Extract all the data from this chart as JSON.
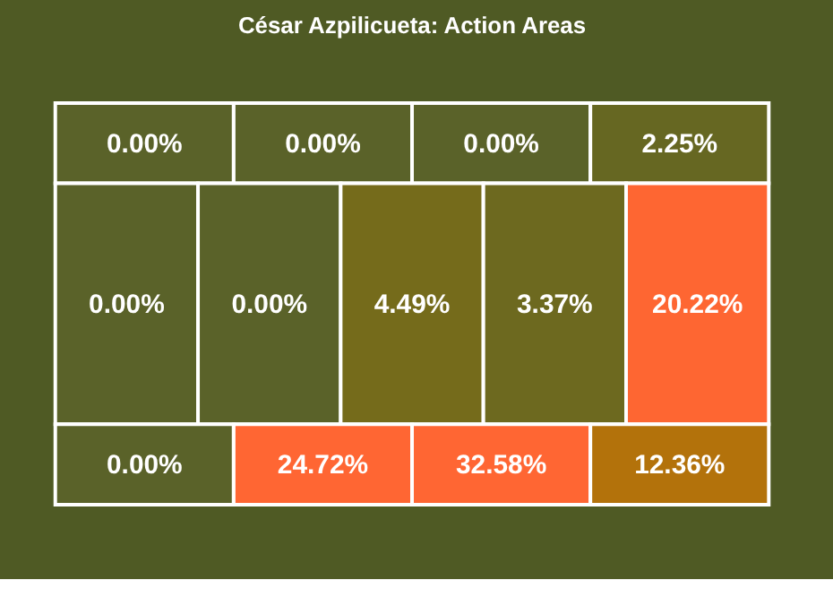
{
  "chart_data": {
    "type": "other",
    "title": "César Azpilicueta: Action Areas",
    "values": [
      0.0,
      0.0,
      0.0,
      2.25,
      0.0,
      0.0,
      4.49,
      3.37,
      20.22,
      0.0,
      24.72,
      32.58,
      12.36
    ],
    "value_labels": [
      "0.00%",
      "0.00%",
      "0.00%",
      "2.25%",
      "0.00%",
      "0.00%",
      "4.49%",
      "3.37%",
      "20.22%",
      "0.00%",
      "24.72%",
      "32.58%",
      "12.36%"
    ]
  }
}
